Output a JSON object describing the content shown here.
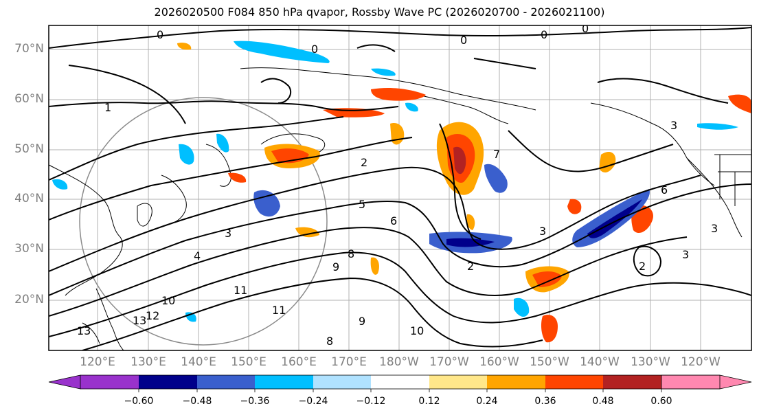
{
  "title": "2026020500 F084 850 hPa qvapor, Rossby Wave PC (2026020700 - 2026021100)",
  "lat_labels": [
    "70°N",
    "60°N",
    "50°N",
    "40°N",
    "30°N",
    "20°N"
  ],
  "lon_labels": [
    "120°E",
    "130°E",
    "140°E",
    "150°E",
    "160°E",
    "170°E",
    "180°W",
    "170°W",
    "160°W",
    "150°W",
    "140°W",
    "130°W",
    "120°W"
  ],
  "colorbar": {
    "colors": [
      "#9932cc",
      "#00008b",
      "#3a5fcd",
      "#00bfff",
      "#b0e2ff",
      "#ffffff",
      "#ffe78a",
      "#ffa500",
      "#ff4500",
      "#b22222",
      "#ff88b0"
    ],
    "ticks": [
      "−0.60",
      "−0.48",
      "−0.36",
      "−0.24",
      "−0.12",
      "0.12",
      "0.24",
      "0.36",
      "0.48",
      "0.60"
    ]
  },
  "contour_labels": [
    "0",
    "0",
    "0",
    "0",
    "0",
    "1",
    "2",
    "2",
    "3",
    "3",
    "3",
    "3",
    "4",
    "5",
    "6",
    "6",
    "8",
    "9",
    "10",
    "11",
    "11",
    "12",
    "13",
    "13",
    "7",
    "9",
    "10",
    "8",
    "2",
    "3"
  ]
}
